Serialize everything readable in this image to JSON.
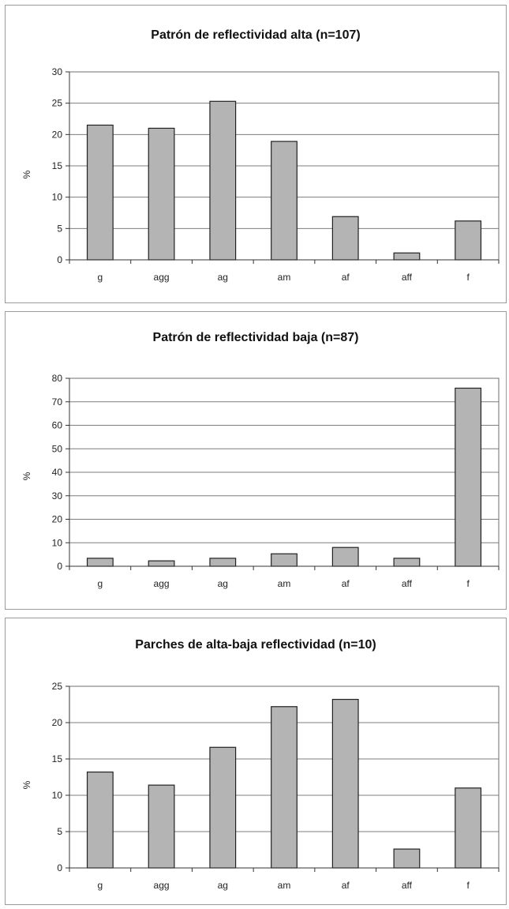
{
  "chart_data": [
    {
      "type": "bar",
      "title": "Patrón de reflectividad alta (n=107)",
      "xlabel": "",
      "ylabel": "%",
      "categories": [
        "g",
        "agg",
        "ag",
        "am",
        "af",
        "aff",
        "f"
      ],
      "values": [
        21.5,
        21,
        25.3,
        18.9,
        6.9,
        1.1,
        6.2
      ],
      "ylim": [
        0,
        30
      ],
      "yticks": [
        0,
        5,
        10,
        15,
        20,
        25,
        30
      ],
      "grid": true,
      "bar_color": "#b4b4b4"
    },
    {
      "type": "bar",
      "title": "Patrón de reflectividad baja (n=87)",
      "xlabel": "",
      "ylabel": "%",
      "categories": [
        "g",
        "agg",
        "ag",
        "am",
        "af",
        "aff",
        "f"
      ],
      "values": [
        3.4,
        2.3,
        3.4,
        5.3,
        8,
        3.4,
        75.8
      ],
      "ylim": [
        0,
        80
      ],
      "yticks": [
        0,
        10,
        20,
        30,
        40,
        50,
        60,
        70,
        80
      ],
      "grid": true,
      "bar_color": "#b4b4b4"
    },
    {
      "type": "bar",
      "title": "Parches de alta-baja reflectividad (n=10)",
      "xlabel": "",
      "ylabel": "%",
      "categories": [
        "g",
        "agg",
        "ag",
        "am",
        "af",
        "aff",
        "f"
      ],
      "values": [
        13.2,
        11.4,
        16.6,
        22.2,
        23.2,
        2.6,
        11
      ],
      "ylim": [
        0,
        25
      ],
      "yticks": [
        0,
        5,
        10,
        15,
        20,
        25
      ],
      "grid": true,
      "bar_color": "#b4b4b4"
    }
  ]
}
